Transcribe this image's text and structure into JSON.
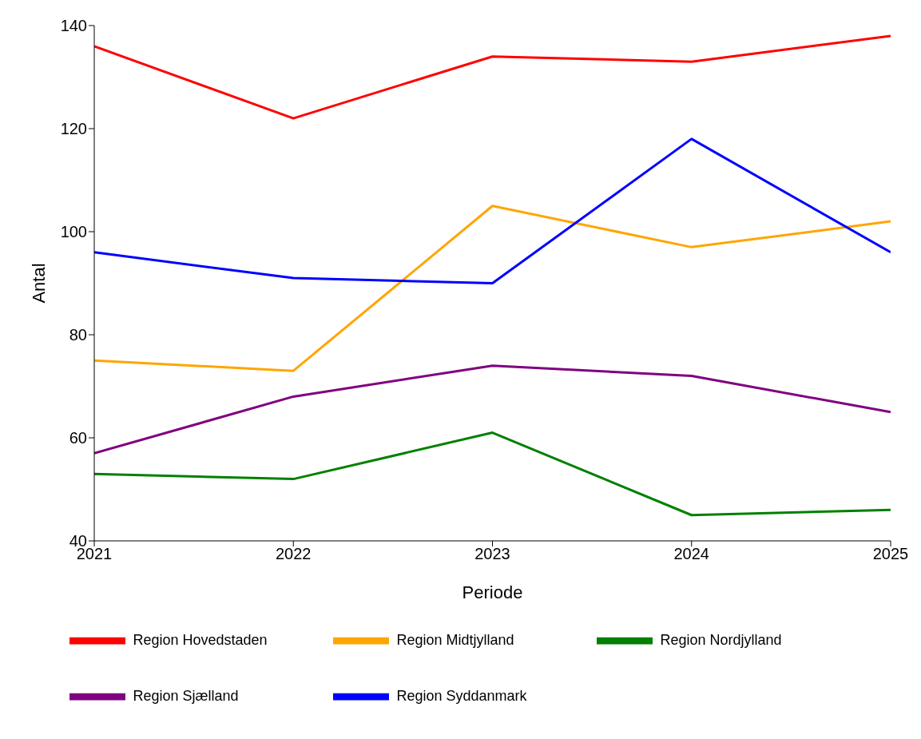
{
  "chart_data": {
    "type": "line",
    "xlabel": "Periode",
    "ylabel": "Antal",
    "x": [
      2021,
      2022,
      2023,
      2024,
      2025
    ],
    "xlim": [
      2021,
      2025
    ],
    "xticks": [
      2021,
      2022,
      2023,
      2024,
      2025
    ],
    "ylim": [
      40,
      140
    ],
    "yticks": [
      40,
      60,
      80,
      100,
      120,
      140
    ],
    "grid": false,
    "legend": "bottom",
    "marker": "none",
    "line_style": "solid",
    "series": [
      {
        "name": "Region Hovedstaden",
        "color": "#ff0000",
        "values": [
          136,
          122,
          134,
          133,
          138
        ]
      },
      {
        "name": "Region Midtjylland",
        "color": "#ffa500",
        "values": [
          75,
          73,
          105,
          97,
          102
        ]
      },
      {
        "name": "Region Nordjylland",
        "color": "#008000",
        "values": [
          53,
          52,
          61,
          45,
          46
        ]
      },
      {
        "name": "Region Sjælland",
        "color": "#800080",
        "values": [
          57,
          68,
          74,
          72,
          65
        ]
      },
      {
        "name": "Region Syddanmark",
        "color": "#0000ff",
        "values": [
          96,
          91,
          90,
          118,
          96
        ]
      }
    ]
  }
}
